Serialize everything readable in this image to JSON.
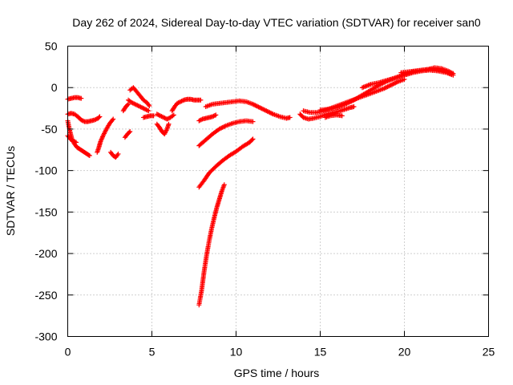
{
  "chart_data": {
    "type": "scatter",
    "title": "Day 262 of 2024, Sidereal Day-to-day VTEC variation (SDTVAR) for receiver san0",
    "xlabel": "GPS time / hours",
    "ylabel": "SDTVAR / TECUs",
    "xlim": [
      0,
      25
    ],
    "ylim": [
      -300,
      50
    ],
    "xticks": [
      0,
      5,
      10,
      15,
      20,
      25
    ],
    "yticks": [
      -300,
      -250,
      -200,
      -150,
      -100,
      -50,
      0,
      50
    ],
    "grid": true,
    "marker": "+",
    "color": "#ff0000",
    "series": [
      {
        "name": "s1",
        "x": [
          0.0,
          0.2,
          0.4,
          0.6,
          0.8
        ],
        "y": [
          -14,
          -13,
          -12,
          -12,
          -13
        ]
      },
      {
        "name": "s2",
        "x": [
          0.0,
          0.2,
          0.4,
          0.6,
          0.8,
          1.0,
          1.2,
          1.4,
          1.6,
          1.8,
          1.9
        ],
        "y": [
          -32,
          -31,
          -32,
          -35,
          -39,
          -41,
          -41,
          -40,
          -39,
          -37,
          -35
        ]
      },
      {
        "name": "s3",
        "x": [
          0.0,
          0.1,
          0.25,
          0.4,
          0.55,
          0.7,
          0.85,
          1.0,
          1.15,
          1.3
        ],
        "y": [
          -40,
          -50,
          -62,
          -68,
          -72,
          -74,
          -76,
          -78,
          -80,
          -82
        ]
      },
      {
        "name": "s4",
        "x": [
          0.0,
          0.15,
          0.3,
          0.5
        ],
        "y": [
          -58,
          -62,
          -64,
          -66
        ]
      },
      {
        "name": "s5",
        "x": [
          1.75,
          1.85,
          1.95,
          2.1,
          2.3,
          2.5,
          2.7
        ],
        "y": [
          -78,
          -72,
          -65,
          -58,
          -50,
          -43,
          -38
        ]
      },
      {
        "name": "s6",
        "x": [
          2.55,
          2.7,
          2.85,
          3.0
        ],
        "y": [
          -78,
          -82,
          -84,
          -80
        ]
      },
      {
        "name": "s7",
        "x": [
          3.4,
          3.55,
          3.7
        ],
        "y": [
          -60,
          -56,
          -53
        ]
      },
      {
        "name": "s8",
        "x": [
          3.3,
          3.45,
          3.6
        ],
        "y": [
          -28,
          -23,
          -20
        ]
      },
      {
        "name": "s9",
        "x": [
          3.7,
          3.9,
          4.1,
          4.3,
          4.5,
          4.7,
          4.85
        ],
        "y": [
          -3,
          0,
          -5,
          -10,
          -15,
          -18,
          -22
        ]
      },
      {
        "name": "s10",
        "x": [
          3.6,
          3.8,
          4.0,
          4.2,
          4.4,
          4.6,
          4.8
        ],
        "y": [
          -15,
          -18,
          -20,
          -22,
          -24,
          -26,
          -28
        ]
      },
      {
        "name": "s11",
        "x": [
          4.5,
          4.7,
          4.9,
          5.1
        ],
        "y": [
          -36,
          -35,
          -34,
          -34
        ]
      },
      {
        "name": "s12",
        "x": [
          5.3,
          5.45,
          5.6,
          5.75,
          5.9,
          6.0
        ],
        "y": [
          -44,
          -48,
          -53,
          -56,
          -50,
          -44
        ]
      },
      {
        "name": "s13",
        "x": [
          5.3,
          5.5,
          5.7,
          5.9,
          6.1,
          6.3
        ],
        "y": [
          -32,
          -34,
          -36,
          -38,
          -36,
          -33
        ]
      },
      {
        "name": "s14",
        "x": [
          6.2,
          6.35,
          6.5,
          6.7,
          6.9,
          7.1,
          7.3,
          7.5,
          7.7,
          7.9
        ],
        "y": [
          -28,
          -23,
          -19,
          -17,
          -15,
          -14,
          -14,
          -15,
          -15,
          -15
        ]
      },
      {
        "name": "s15",
        "x": [
          7.8,
          8.0,
          8.2,
          8.4,
          8.6,
          8.8
        ],
        "y": [
          -40,
          -38,
          -37,
          -36,
          -35,
          -33
        ]
      },
      {
        "name": "s16",
        "x": [
          8.2,
          8.6,
          9.0,
          9.4,
          9.8,
          10.2,
          10.6,
          11.0,
          11.4,
          11.8,
          12.2,
          12.6,
          13.0,
          13.2
        ],
        "y": [
          -23,
          -20,
          -19,
          -18,
          -17,
          -16,
          -17,
          -20,
          -24,
          -28,
          -32,
          -35,
          -37,
          -36
        ]
      },
      {
        "name": "s17",
        "x": [
          7.8,
          8.2,
          8.6,
          9.0,
          9.4,
          9.8,
          10.2,
          10.6,
          11.0
        ],
        "y": [
          -70,
          -63,
          -56,
          -50,
          -46,
          -43,
          -41,
          -40,
          -41
        ]
      },
      {
        "name": "s18",
        "x": [
          7.8,
          8.1,
          8.4,
          8.8,
          9.2,
          9.6,
          10.0,
          10.4,
          10.8,
          11.0
        ],
        "y": [
          -120,
          -112,
          -103,
          -95,
          -88,
          -82,
          -77,
          -71,
          -66,
          -62
        ]
      },
      {
        "name": "s19",
        "x": [
          7.8,
          7.95,
          8.1,
          8.25,
          8.4,
          8.55,
          8.7,
          8.85,
          9.0,
          9.15,
          9.3
        ],
        "y": [
          -262,
          -245,
          -222,
          -202,
          -185,
          -170,
          -157,
          -145,
          -135,
          -125,
          -117
        ]
      },
      {
        "name": "s20",
        "x": [
          13.8,
          14.0,
          14.3,
          14.6,
          15.0,
          15.4,
          15.8,
          16.2,
          16.5,
          16.8,
          17.0
        ],
        "y": [
          -32,
          -36,
          -38,
          -37,
          -35,
          -32,
          -30,
          -28,
          -26,
          -24,
          -23
        ]
      },
      {
        "name": "s21",
        "x": [
          14.0,
          14.4,
          14.8,
          15.2,
          15.6,
          16.0,
          16.4,
          16.8,
          17.2,
          17.6,
          18.0,
          18.4,
          18.8,
          19.2,
          19.6,
          20.0
        ],
        "y": [
          -28,
          -30,
          -30,
          -28,
          -25,
          -22,
          -19,
          -16,
          -13,
          -10,
          -7,
          -4,
          -1,
          3,
          7,
          10
        ]
      },
      {
        "name": "s22",
        "x": [
          15.0,
          15.5,
          16.0,
          16.5,
          17.0,
          17.5,
          18.0,
          18.5,
          19.0,
          19.5,
          20.0,
          20.5,
          21.0,
          21.5,
          22.0,
          22.5,
          22.8
        ],
        "y": [
          -27,
          -26,
          -24,
          -20,
          -15,
          -9,
          -3,
          3,
          8,
          12,
          16,
          19,
          21,
          22,
          21,
          19,
          16
        ]
      },
      {
        "name": "s23",
        "x": [
          17.5,
          18.0,
          18.5,
          19.0,
          19.5,
          20.0,
          20.5,
          21.0,
          21.5,
          22.0,
          22.5,
          22.9
        ],
        "y": [
          0,
          4,
          6,
          9,
          12,
          15,
          18,
          20,
          21,
          20,
          18,
          15
        ]
      },
      {
        "name": "s24",
        "x": [
          19.8,
          20.2,
          20.6,
          21.0,
          21.4,
          21.8,
          22.2,
          22.6,
          22.9
        ],
        "y": [
          18,
          19,
          20,
          21,
          22,
          24,
          23,
          20,
          17
        ]
      },
      {
        "name": "s25",
        "x": [
          15.3,
          15.6,
          16.0,
          16.3
        ],
        "y": [
          -36,
          -34,
          -33,
          -34
        ]
      }
    ]
  }
}
